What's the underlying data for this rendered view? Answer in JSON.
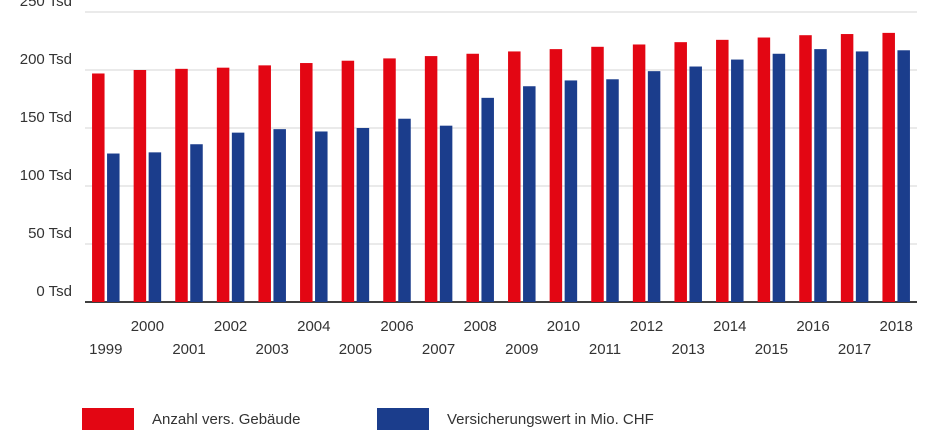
{
  "chart_data": {
    "type": "bar",
    "categories": [
      "1999",
      "2000",
      "2001",
      "2002",
      "2003",
      "2004",
      "2005",
      "2006",
      "2007",
      "2008",
      "2009",
      "2010",
      "2011",
      "2012",
      "2013",
      "2014",
      "2015",
      "2016",
      "2017",
      "2018"
    ],
    "series": [
      {
        "name": "Anzahl vers. Gebäude",
        "color": "#e30613",
        "values": [
          197,
          200,
          201,
          202,
          204,
          206,
          208,
          210,
          212,
          214,
          216,
          218,
          220,
          222,
          224,
          226,
          228,
          230,
          231,
          232
        ]
      },
      {
        "name": "Versicherungswert in Mio. CHF",
        "color": "#1b3d8c",
        "values": [
          128,
          129,
          136,
          146,
          149,
          147,
          150,
          158,
          152,
          176,
          186,
          191,
          192,
          199,
          203,
          209,
          214,
          218,
          216,
          217
        ]
      }
    ],
    "ylim": [
      0,
      250
    ],
    "yticks": [
      {
        "value": 0,
        "label": "0 Tsd"
      },
      {
        "value": 50,
        "label": "50 Tsd"
      },
      {
        "value": 100,
        "label": "100 Tsd"
      },
      {
        "value": 150,
        "label": "150 Tsd"
      },
      {
        "value": 200,
        "label": "200 Tsd"
      },
      {
        "value": 250,
        "label": "250 Tsd"
      }
    ],
    "grid": true,
    "legend": "bottom"
  }
}
